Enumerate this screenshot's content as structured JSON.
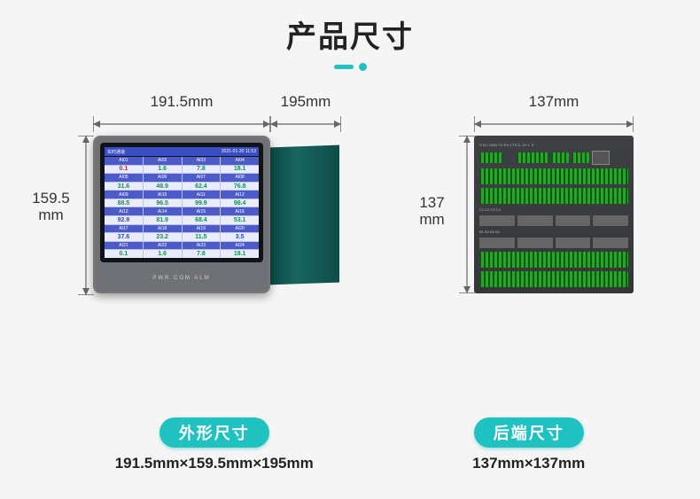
{
  "title": "产品尺寸",
  "front": {
    "dim_width": "191.5mm",
    "dim_depth": "195mm",
    "dim_height_num": "159.5",
    "dim_height_unit": "mm",
    "screen_header_left": "实时通道",
    "screen_header_right": "2021-01-20  11:53",
    "col_headers": [
      [
        "AI01",
        "AI02",
        "AI03",
        "AI04"
      ],
      [
        "AI05",
        "AI06",
        "AI07",
        "AI08"
      ],
      [
        "AI09",
        "AI10",
        "AI11",
        "AI12"
      ],
      [
        "AI13",
        "AI14",
        "AI15",
        "AI16"
      ],
      [
        "AI17",
        "AI18",
        "AI19",
        "AI20"
      ],
      [
        "AI21",
        "AI22",
        "AI23",
        "AI24"
      ]
    ],
    "values": [
      [
        {
          "v": "0.1",
          "c": "red"
        },
        {
          "v": "1.6",
          "c": "green"
        },
        {
          "v": "7.8",
          "c": "green"
        },
        {
          "v": "18.1",
          "c": "green"
        }
      ],
      [
        {
          "v": "31.6",
          "c": "green"
        },
        {
          "v": "48.9",
          "c": "green"
        },
        {
          "v": "62.4",
          "c": "green"
        },
        {
          "v": "76.8",
          "c": "green"
        }
      ],
      [
        {
          "v": "88.5",
          "c": "green"
        },
        {
          "v": "96.5",
          "c": "green"
        },
        {
          "v": "99.9",
          "c": "green"
        },
        {
          "v": "98.4",
          "c": "green"
        }
      ],
      [
        {
          "v": "92.9",
          "c": "blue"
        },
        {
          "v": "81.9",
          "c": "green"
        },
        {
          "v": "68.4",
          "c": "green"
        },
        {
          "v": "53.1",
          "c": "green"
        }
      ],
      [
        {
          "v": "37.6",
          "c": "blue"
        },
        {
          "v": "23.2",
          "c": "green"
        },
        {
          "v": "11.5",
          "c": "green"
        },
        {
          "v": "3.5",
          "c": "blue"
        }
      ],
      [
        {
          "v": "0.1",
          "c": "green"
        },
        {
          "v": "1.6",
          "c": "green"
        },
        {
          "v": "7.8",
          "c": "green"
        },
        {
          "v": "18.1",
          "c": "green"
        }
      ]
    ],
    "dev_labels": "PWR  COM  ALM",
    "label_pill": "外形尺寸",
    "label_dims": "191.5mm×159.5mm×195mm"
  },
  "back": {
    "dim_width": "137mm",
    "dim_height_num": "137",
    "dim_height_unit": "mm",
    "port_labels_top": "G  N  L        GND TX RX CTS  D-  D+  I-  I+",
    "row_labels_1": "C1            C2            C3            C4",
    "row_labels_2": "B1            B2            B3            B4",
    "label_pill": "后端尺寸",
    "label_dims": "137mm×137mm"
  },
  "colors": {
    "accent": "#1fc1c1",
    "device_gray": "#6f7176",
    "terminal_green": "#1a8a1e",
    "screen_header": "#3a4dc2"
  }
}
